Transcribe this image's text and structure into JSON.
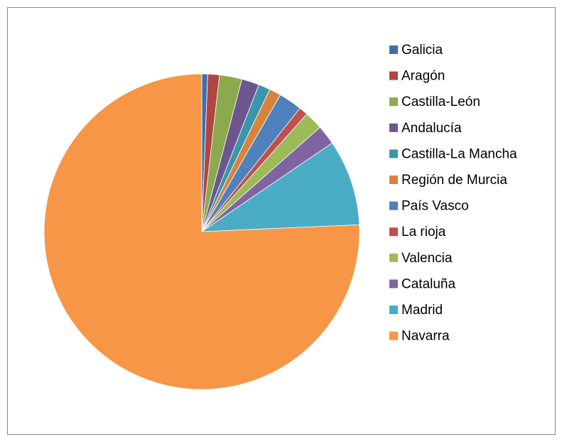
{
  "chart_data": {
    "type": "pie",
    "categories": [
      "Galicia",
      "Aragón",
      "Castilla-León",
      "Andalucía",
      "Castilla-La Mancha",
      "Región de Murcia",
      "País Vasco",
      "La rioja",
      "Valencia",
      "Cataluña",
      "Madrid",
      "Navarra"
    ],
    "values": [
      0.6,
      1.2,
      2.3,
      1.8,
      1.2,
      1.2,
      2.4,
      0.9,
      1.9,
      2.0,
      8.8,
      75.7
    ],
    "colors": [
      "#3F6FAA",
      "#B04542",
      "#8BAA4E",
      "#6D5690",
      "#3996AB",
      "#D8833C",
      "#4F81BD",
      "#C0504D",
      "#9BBB59",
      "#8064A2",
      "#4BACC6",
      "#F79646"
    ],
    "legend": "right"
  }
}
